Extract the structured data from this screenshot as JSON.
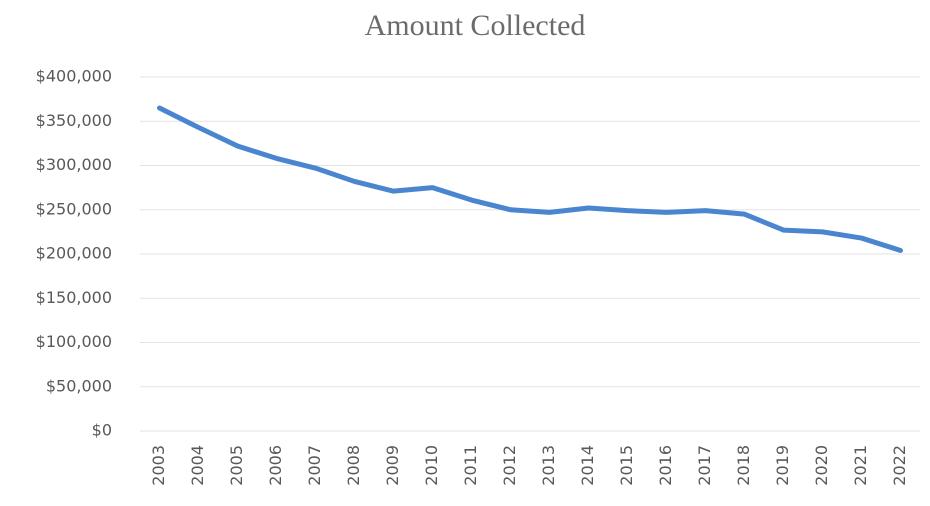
{
  "chart_data": {
    "type": "line",
    "title": "Amount Collected",
    "categories": [
      "2003",
      "2004",
      "2005",
      "2006",
      "2007",
      "2008",
      "2009",
      "2010",
      "2011",
      "2012",
      "2013",
      "2014",
      "2015",
      "2016",
      "2017",
      "2018",
      "2019",
      "2020",
      "2021",
      "2022"
    ],
    "values": [
      365000,
      343000,
      322000,
      308000,
      297000,
      282000,
      271000,
      275000,
      261000,
      250000,
      247000,
      252000,
      249000,
      247000,
      249000,
      245000,
      227000,
      225000,
      218000,
      204000
    ],
    "color": "#4a86d0",
    "ylim": [
      0,
      400000
    ],
    "yticks": [
      {
        "value": 0,
        "label": "$0"
      },
      {
        "value": 50000,
        "label": "$50,000"
      },
      {
        "value": 100000,
        "label": "$100,000"
      },
      {
        "value": 150000,
        "label": "$150,000"
      },
      {
        "value": 200000,
        "label": "$200,000"
      },
      {
        "value": 250000,
        "label": "$250,000"
      },
      {
        "value": 300000,
        "label": "$300,000"
      },
      {
        "value": 350000,
        "label": "$350,000"
      },
      {
        "value": 400000,
        "label": "$400,000"
      }
    ],
    "grid": true
  }
}
